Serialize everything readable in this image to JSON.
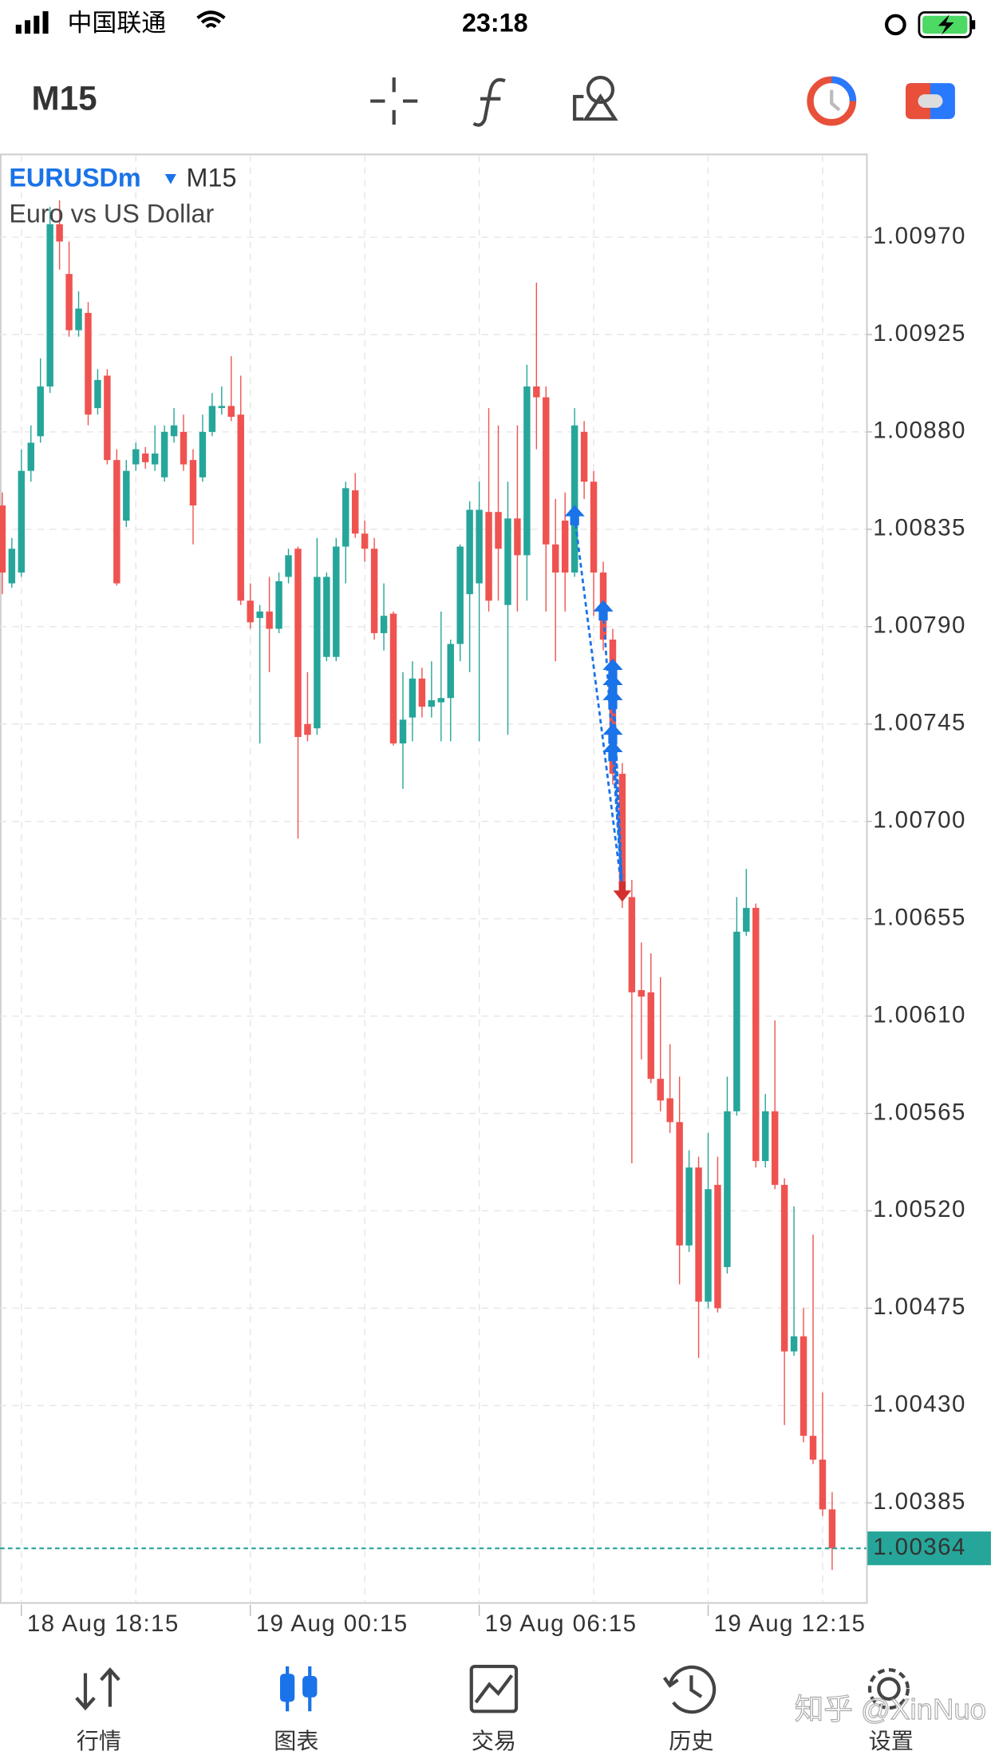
{
  "status_bar": {
    "carrier": "中国联通",
    "time": "23:18"
  },
  "toolbar": {
    "timeframe": "M15"
  },
  "chart_data": {
    "type": "candlestick",
    "symbol": "EURUSDm",
    "timeframe": "M15",
    "description": "Euro vs US Dollar",
    "up_color": "#26a69a",
    "down_color": "#ef5350",
    "grid": true,
    "categories": [
      null,
      null,
      "18 Aug 18:15",
      null,
      null,
      null,
      null,
      null,
      null,
      null,
      null,
      null,
      null,
      null,
      null,
      null,
      null,
      null,
      null,
      null,
      null,
      null,
      null,
      null,
      null,
      null,
      "19 Aug 00:15",
      null,
      null,
      null,
      null,
      null,
      null,
      null,
      null,
      null,
      null,
      null,
      null,
      null,
      null,
      null,
      null,
      null,
      null,
      null,
      null,
      null,
      null,
      null,
      "19 Aug 06:15",
      null,
      null,
      null,
      null,
      null,
      null,
      null,
      null,
      null,
      null,
      null,
      null,
      null,
      null,
      null,
      null,
      null,
      null,
      null,
      null,
      null,
      null,
      null,
      "19 Aug 12:15",
      null,
      null,
      null,
      null,
      null,
      null,
      null,
      null,
      null,
      null,
      null,
      null,
      null
    ],
    "open": [
      1.00846,
      1.0081,
      1.00815,
      1.00862,
      1.00878,
      1.00901,
      1.00976,
      1.00953,
      1.00927,
      1.00935,
      1.00891,
      1.00906,
      1.00867,
      1.00839,
      1.00865,
      1.0087,
      1.00865,
      1.00859,
      1.00878,
      1.0088,
      1.00867,
      1.00859,
      1.0088,
      1.00891,
      1.00892,
      1.00888,
      1.00802,
      1.00794,
      1.00797,
      1.00789,
      1.00813,
      1.00826,
      1.00745,
      1.00743,
      1.00776,
      1.00776,
      1.00827,
      1.00853,
      1.00833,
      1.00826,
      1.00787,
      1.00796,
      1.00736,
      1.00748,
      1.00766,
      1.00753,
      1.00755,
      1.00757,
      1.00782,
      1.00805,
      1.0081,
      1.00843,
      1.00843,
      1.008,
      1.0084,
      1.00823,
      1.00901,
      1.00896,
      1.00828,
      1.00839,
      1.00815,
      1.0088,
      1.00857,
      1.00815,
      1.00784,
      1.00722,
      1.00665,
      1.00622,
      1.00621,
      1.00581,
      1.00572,
      1.00561,
      1.00504,
      1.0054,
      1.00478,
      1.00532,
      1.00494,
      1.00566,
      1.00649,
      1.0066,
      1.00543,
      1.00566,
      1.00532,
      1.00455,
      1.00462,
      1.00416,
      1.00405,
      1.00382
    ],
    "high": [
      1.00852,
      1.00831,
      1.00872,
      1.00883,
      1.00914,
      1.00984,
      1.00987,
      1.00968,
      1.00945,
      1.0094,
      1.00909,
      1.00909,
      1.00872,
      1.00867,
      1.00875,
      1.00873,
      1.00883,
      1.00883,
      1.00891,
      1.00888,
      1.00872,
      1.00888,
      1.00898,
      1.00901,
      1.00915,
      1.00906,
      1.0081,
      1.008,
      1.00813,
      1.00815,
      1.00826,
      1.00827,
      1.00769,
      1.00831,
      1.00815,
      1.00831,
      1.00857,
      1.00861,
      1.00839,
      1.00831,
      1.0081,
      1.00797,
      1.00769,
      1.00774,
      1.00771,
      1.00774,
      1.00797,
      1.00784,
      1.00828,
      1.00848,
      1.00857,
      1.00891,
      1.00883,
      1.00857,
      1.00883,
      1.00911,
      1.00949,
      1.00901,
      1.00849,
      1.00852,
      1.00891,
      1.00885,
      1.00862,
      1.0082,
      1.00789,
      1.00727,
      1.00673,
      1.00644,
      1.00639,
      1.00628,
      1.00597,
      1.00582,
      1.00548,
      1.00545,
      1.00556,
      1.00545,
      1.00582,
      1.00665,
      1.00678,
      1.00662,
      1.00574,
      1.00608,
      1.00535,
      1.00522,
      1.00475,
      1.00509,
      1.00436,
      1.0039
    ],
    "low": [
      1.00805,
      1.00808,
      1.00813,
      1.00857,
      1.00875,
      1.00898,
      1.00955,
      1.00924,
      1.00924,
      1.00883,
      1.00888,
      1.00865,
      1.00809,
      1.00836,
      1.00862,
      1.00863,
      1.00862,
      1.00857,
      1.00875,
      1.00862,
      1.00828,
      1.00857,
      1.00878,
      1.00888,
      1.00885,
      1.008,
      1.00789,
      1.00736,
      1.00769,
      1.00787,
      1.0081,
      1.00692,
      1.00737,
      1.0074,
      1.00774,
      1.00774,
      1.0081,
      1.00831,
      1.0082,
      1.00784,
      1.00779,
      1.00735,
      1.00715,
      1.00737,
      1.00748,
      1.00748,
      1.00737,
      1.00737,
      1.00774,
      1.00769,
      1.00737,
      1.00797,
      1.00802,
      1.0074,
      1.00797,
      1.00802,
      1.00872,
      1.00797,
      1.00774,
      1.00797,
      1.00813,
      1.00849,
      1.00795,
      1.00779,
      1.00717,
      1.0066,
      1.00542,
      1.0059,
      1.00579,
      1.00566,
      1.00556,
      1.00486,
      1.00501,
      1.00452,
      1.00475,
      1.00473,
      1.00491,
      1.00564,
      1.00647,
      1.0054,
      1.0054,
      1.0053,
      1.00421,
      1.00453,
      1.00413,
      1.00403,
      1.00379,
      1.00354
    ],
    "close": [
      1.00815,
      1.00826,
      1.00862,
      1.00875,
      1.00901,
      1.00976,
      1.00968,
      1.00927,
      1.00937,
      1.00888,
      1.00904,
      1.00867,
      1.0081,
      1.00862,
      1.00872,
      1.00866,
      1.0087,
      1.0088,
      1.00883,
      1.00865,
      1.00846,
      1.0088,
      1.00892,
      1.00892,
      1.00887,
      1.00802,
      1.00792,
      1.00797,
      1.00789,
      1.00811,
      1.00823,
      1.00739,
      1.0074,
      1.00813,
      1.00813,
      1.00827,
      1.00854,
      1.00833,
      1.00826,
      1.00787,
      1.00795,
      1.00736,
      1.00747,
      1.00766,
      1.00753,
      1.00756,
      1.00757,
      1.00782,
      1.00827,
      1.00844,
      1.00844,
      1.00802,
      1.00826,
      1.0084,
      1.00823,
      1.00901,
      1.00896,
      1.00828,
      1.00815,
      1.00815,
      1.00883,
      1.00857,
      1.00815,
      1.00784,
      1.00722,
      1.00665,
      1.00621,
      1.00619,
      1.00581,
      1.00571,
      1.00561,
      1.00504,
      1.0054,
      1.00478,
      1.0053,
      1.00475,
      1.00566,
      1.00649,
      1.0066,
      1.00543,
      1.00566,
      1.00532,
      1.00455,
      1.00462,
      1.00416,
      1.00405,
      1.00382,
      1.00364
    ],
    "ylim": [
      1.00339,
      1.01008
    ],
    "yticks": [
      {
        "value": 1.0097,
        "label": "1.00970"
      },
      {
        "value": 1.00925,
        "label": "1.00925"
      },
      {
        "value": 1.0088,
        "label": "1.00880"
      },
      {
        "value": 1.00835,
        "label": "1.00835"
      },
      {
        "value": 1.0079,
        "label": "1.00790"
      },
      {
        "value": 1.00745,
        "label": "1.00745"
      },
      {
        "value": 1.007,
        "label": "1.00700"
      },
      {
        "value": 1.00655,
        "label": "1.00655"
      },
      {
        "value": 1.0061,
        "label": "1.00610"
      },
      {
        "value": 1.00565,
        "label": "1.00565"
      },
      {
        "value": 1.0052,
        "label": "1.00520"
      },
      {
        "value": 1.00475,
        "label": "1.00475"
      },
      {
        "value": 1.0043,
        "label": "1.00430"
      },
      {
        "value": 1.00385,
        "label": "1.00385"
      }
    ],
    "last_price": {
      "value": 1.00364,
      "label": "1.00364"
    },
    "trade_color": "#1a73e8",
    "exit_color": "#d32f2f",
    "entries": [
      {
        "candle": 60,
        "price": 1.00841
      },
      {
        "candle": 63,
        "price": 1.00797
      },
      {
        "candle": 64,
        "price": 1.0077
      },
      {
        "candle": 64,
        "price": 1.00763
      },
      {
        "candle": 64,
        "price": 1.00756
      },
      {
        "candle": 64,
        "price": 1.0074
      },
      {
        "candle": 64,
        "price": 1.00732
      }
    ],
    "exit": {
      "candle": 65,
      "price": 1.00667
    }
  },
  "nav": {
    "items": [
      "行情",
      "图表",
      "交易",
      "历史",
      "设置"
    ]
  },
  "watermark": "知乎 @XinNuo"
}
